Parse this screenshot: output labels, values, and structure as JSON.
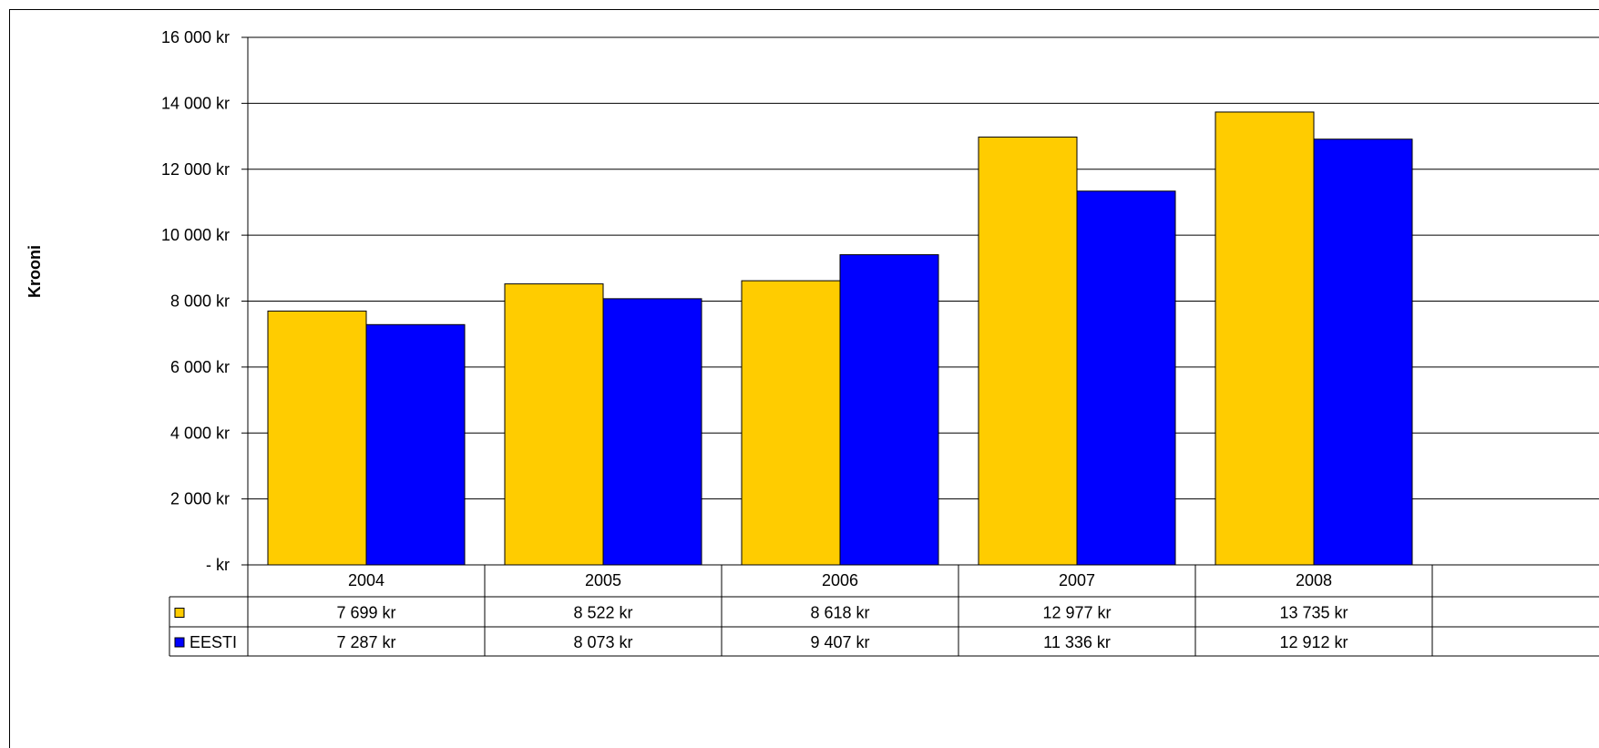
{
  "chart_data": {
    "type": "bar",
    "title": "",
    "xlabel": "",
    "ylabel": "Krooni",
    "categories": [
      "2004",
      "2005",
      "2006",
      "2007",
      "2008"
    ],
    "series": [
      {
        "name": "",
        "color": "#FFCC00",
        "values": [
          7699,
          8522,
          8618,
          12977,
          13735
        ],
        "value_labels": [
          "7 699 kr",
          "8 522 kr",
          "8 618 kr",
          "12 977 kr",
          "13 735 kr"
        ]
      },
      {
        "name": "EESTI",
        "color": "#0000FF",
        "values": [
          7287,
          8073,
          9407,
          11336,
          12912
        ],
        "value_labels": [
          "7 287 kr",
          "8 073 kr",
          "9 407 kr",
          "11 336 kr",
          "12 912 kr"
        ]
      }
    ],
    "ylim": [
      0,
      16000
    ],
    "yticks": [
      0,
      2000,
      4000,
      6000,
      8000,
      10000,
      12000,
      14000,
      16000
    ],
    "ytick_labels": [
      "- kr",
      "2 000 kr",
      "4 000 kr",
      "6 000 kr",
      "8 000 kr",
      "10 000 kr",
      "12 000 kr",
      "14 000 kr",
      "16 000 kr"
    ],
    "grid": true,
    "legend": "data-table"
  }
}
